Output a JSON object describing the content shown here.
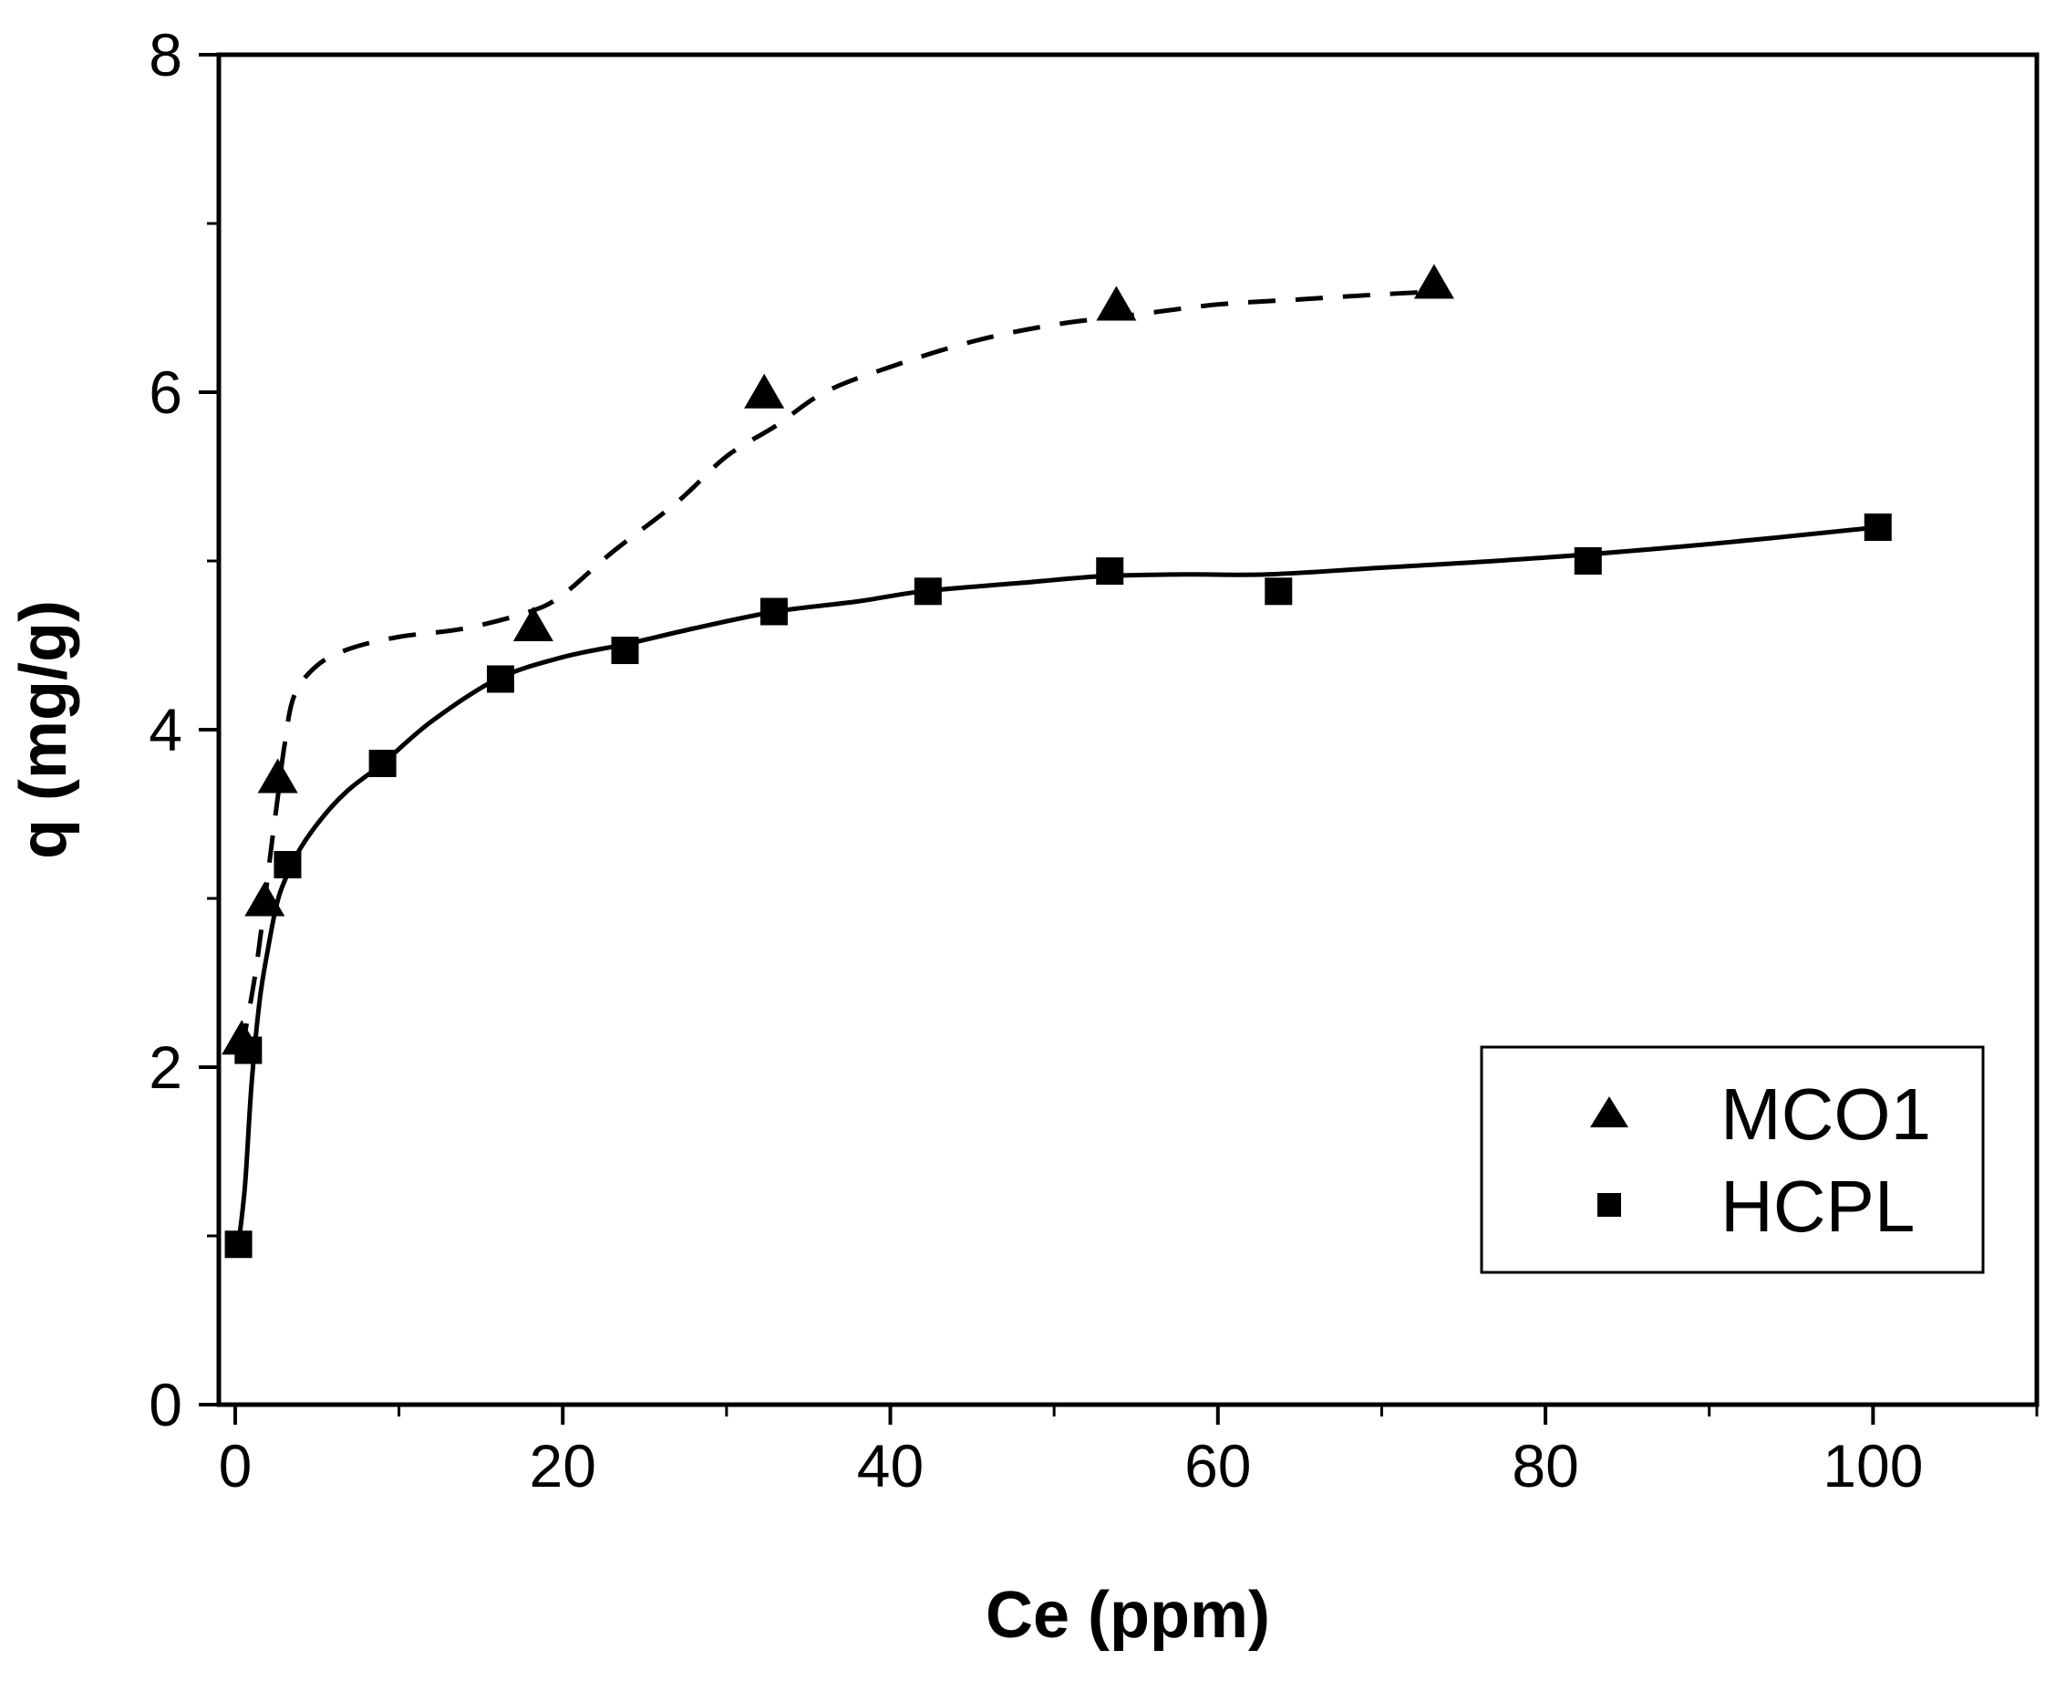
{
  "chart_data": {
    "type": "scatter",
    "title": "",
    "xlabel": "Ce (ppm)",
    "ylabel": "q (mg/g)",
    "xlim": [
      -1,
      110
    ],
    "ylim": [
      0,
      8
    ],
    "x_ticks": [
      0,
      20,
      40,
      60,
      80,
      100
    ],
    "x_minor_ticks": [
      10,
      30,
      50,
      70,
      90,
      110
    ],
    "y_ticks": [
      0,
      2,
      4,
      6,
      8
    ],
    "y_minor_ticks": [
      1,
      3,
      5,
      7
    ],
    "x_tick_labels": [
      "0",
      "20",
      "40",
      "60",
      "80",
      "100"
    ],
    "y_tick_labels": [
      "0",
      "2",
      "4",
      "6",
      "8"
    ],
    "grid": false,
    "legend_position": "lower-right",
    "series": [
      {
        "name": "MCO1",
        "marker": "triangle",
        "line_style": "dashed",
        "x": [
          0.4,
          1.8,
          2.6,
          18.2,
          32.3,
          53.8,
          73.2
        ],
        "y": [
          2.15,
          2.97,
          3.7,
          4.6,
          5.98,
          6.5,
          6.63
        ],
        "fit_x": [
          0.4,
          1.3,
          2.2,
          2.6,
          3.0,
          3.6,
          5.0,
          7.0,
          10,
          14,
          18,
          20,
          23,
          27,
          30,
          33,
          36,
          40,
          45,
          50,
          55,
          60,
          65,
          70,
          74
        ],
        "fit_y": [
          2.1,
          2.6,
          3.3,
          3.6,
          3.9,
          4.2,
          4.38,
          4.48,
          4.55,
          4.6,
          4.7,
          4.8,
          5.05,
          5.35,
          5.62,
          5.8,
          6.0,
          6.15,
          6.3,
          6.4,
          6.46,
          6.52,
          6.55,
          6.58,
          6.6
        ]
      },
      {
        "name": "HCPL",
        "marker": "square",
        "line_style": "solid",
        "x": [
          0.2,
          0.8,
          3.2,
          9.0,
          16.2,
          23.8,
          32.9,
          42.3,
          53.4,
          63.7,
          82.6,
          100.3
        ],
        "y": [
          0.95,
          2.1,
          3.2,
          3.8,
          4.3,
          4.47,
          4.7,
          4.82,
          4.94,
          4.82,
          5.0,
          5.2
        ],
        "fit_x": [
          0.2,
          0.6,
          1.0,
          1.5,
          2.0,
          2.5,
          3.0,
          4.0,
          5.5,
          7.0,
          9.0,
          12,
          16,
          20,
          24,
          28,
          33,
          38,
          42,
          48,
          53,
          58,
          63,
          70,
          80,
          90,
          100.3
        ],
        "fit_y": [
          0.95,
          1.3,
          1.9,
          2.4,
          2.7,
          2.95,
          3.1,
          3.3,
          3.5,
          3.65,
          3.8,
          4.05,
          4.3,
          4.43,
          4.51,
          4.6,
          4.7,
          4.76,
          4.82,
          4.87,
          4.91,
          4.92,
          4.92,
          4.96,
          5.02,
          5.1,
          5.2
        ]
      }
    ]
  }
}
